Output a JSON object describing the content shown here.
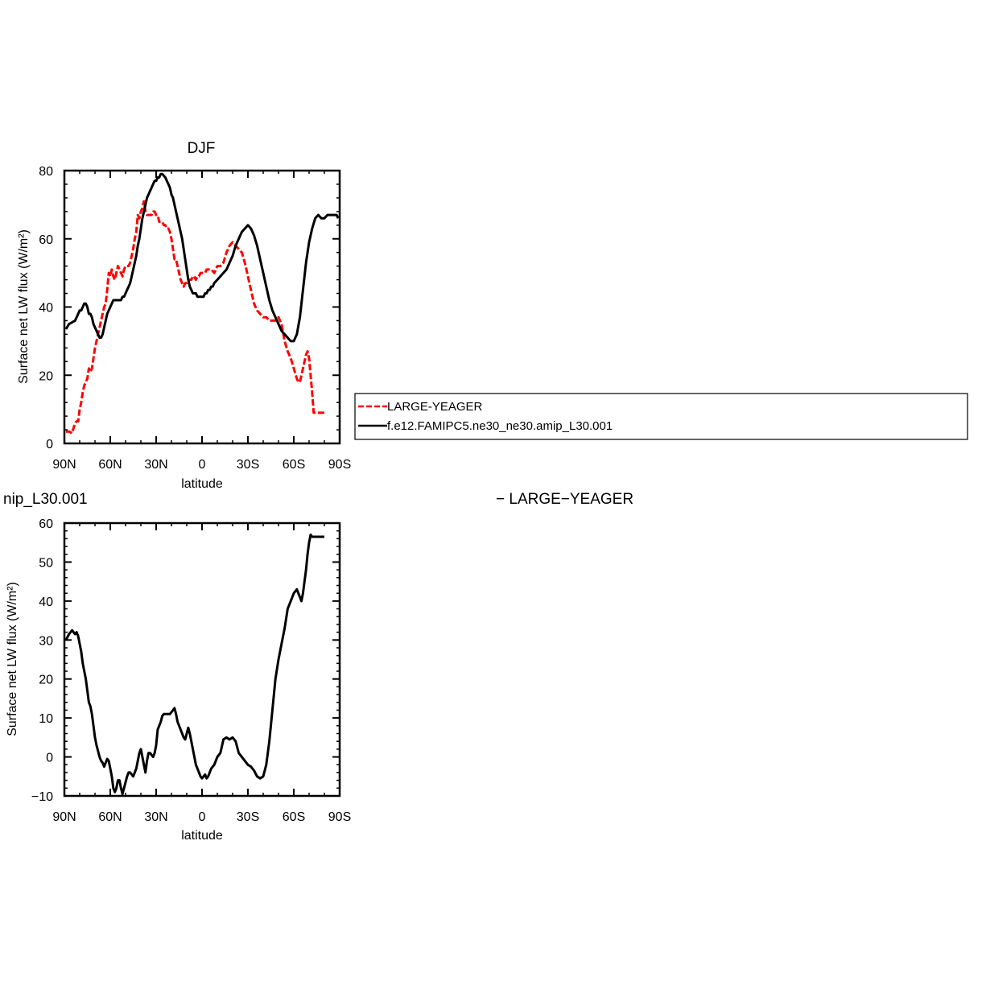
{
  "colors": {
    "obs": "#ff0000",
    "model": "#000000"
  },
  "legend": {
    "entries": [
      "LARGE-YEAGER",
      "f.e12.FAMIPC5.ne30_ne30.amip_L30.001"
    ]
  },
  "chart_data": [
    {
      "type": "line",
      "title": "DJF",
      "xlabel": "latitude",
      "ylabel": "Surface net LW flux (W/m²)",
      "xlim": [
        90,
        -90
      ],
      "ylim": [
        0,
        80
      ],
      "xticks": [
        90,
        60,
        30,
        0,
        -30,
        -60,
        -90
      ],
      "xtick_labels": [
        "90N",
        "60N",
        "30N",
        "0",
        "30S",
        "60S",
        "90S"
      ],
      "yticks": [
        0,
        20,
        40,
        60,
        80
      ],
      "ytick_labels": [
        "0",
        "20",
        "40",
        "60",
        "80"
      ],
      "legend_position": "right",
      "series": [
        {
          "name": "LARGE-YEAGER",
          "style": "dashed",
          "color": "#ff0000",
          "x": [
            89,
            87,
            85,
            84,
            83,
            82,
            81,
            80,
            79,
            78,
            77,
            76,
            75,
            74,
            73,
            72,
            71,
            70,
            69,
            68,
            67,
            66,
            65,
            64,
            63,
            62,
            61,
            60,
            59,
            58,
            57,
            56,
            55,
            54,
            53,
            52,
            51,
            50,
            49,
            48,
            47,
            46,
            45,
            44,
            43,
            42,
            41,
            40,
            39,
            38,
            37,
            36,
            35,
            34,
            33,
            32,
            31,
            30,
            29,
            28,
            27,
            26,
            25,
            24,
            23,
            22,
            21,
            20,
            19,
            18,
            17,
            16,
            15,
            14,
            13,
            12,
            11,
            10,
            9,
            8,
            7,
            6,
            5,
            4,
            3,
            2,
            1,
            0,
            -1,
            -2,
            -3,
            -4,
            -5,
            -6,
            -8,
            -10,
            -12,
            -14,
            -16,
            -18,
            -20,
            -22,
            -24,
            -26,
            -28,
            -30,
            -32,
            -34,
            -36,
            -38,
            -40,
            -42,
            -44,
            -46,
            -48,
            -50,
            -52,
            -54,
            -56,
            -58,
            -60,
            -62,
            -63,
            -64,
            -65,
            -66,
            -67,
            -68,
            -69,
            -70,
            -71,
            -72,
            -73,
            -74,
            -75,
            -76,
            -77,
            -78,
            -79,
            -80
          ],
          "y": [
            3.5,
            3.5,
            3,
            4.5,
            6,
            6.5,
            6.5,
            10,
            12,
            15,
            17,
            18,
            19,
            22,
            21,
            22,
            25,
            28,
            30,
            32,
            34,
            36,
            38,
            40,
            41,
            45,
            50,
            49,
            51,
            49,
            48,
            50,
            52,
            51,
            50,
            49,
            51,
            52,
            52,
            52,
            53,
            55,
            57,
            60,
            62,
            67,
            66,
            68,
            69,
            71,
            68,
            67,
            67,
            67,
            67,
            68,
            68,
            67,
            67,
            65,
            65,
            65,
            64,
            64,
            63,
            63,
            62,
            60,
            57,
            54,
            54,
            52,
            50,
            48,
            47,
            46,
            47,
            47,
            48,
            48,
            48,
            49,
            49,
            48,
            49,
            49,
            50,
            50,
            50,
            50,
            51,
            51,
            51,
            51,
            50,
            52,
            52,
            53,
            56,
            58,
            59,
            58,
            57,
            56,
            53,
            49,
            45,
            41,
            39,
            38,
            37,
            37,
            36,
            36,
            36,
            37,
            35,
            30,
            27,
            25,
            22,
            19,
            18,
            18,
            20,
            22,
            24,
            26,
            27,
            25,
            20,
            15,
            9,
            9,
            9,
            9,
            9,
            9,
            9,
            9
          ]
        },
        {
          "name": "f.e12.FAMIPC5.ne30_ne30.amip_L30.001",
          "style": "solid",
          "color": "#000000",
          "x": [
            89,
            87,
            85,
            83,
            82,
            81,
            80,
            79,
            78,
            77,
            76,
            75,
            74,
            73,
            72,
            71,
            70,
            69,
            68,
            67,
            66,
            65,
            64,
            63,
            62,
            61,
            60,
            59,
            58,
            57,
            56,
            55,
            54,
            53,
            52,
            51,
            50,
            49,
            48,
            47,
            46,
            45,
            44,
            43,
            42,
            41,
            40,
            39,
            38,
            37,
            36,
            35,
            34,
            33,
            32,
            31,
            30,
            29,
            28,
            27,
            26,
            25,
            24,
            23,
            22,
            21,
            20,
            19,
            18,
            17,
            16,
            15,
            14,
            13,
            12,
            11,
            10,
            9,
            8,
            7,
            6,
            5,
            4,
            3,
            2,
            1,
            0,
            -1,
            -2,
            -3,
            -4,
            -5,
            -6,
            -7,
            -8,
            -10,
            -12,
            -14,
            -16,
            -18,
            -20,
            -22,
            -24,
            -26,
            -28,
            -30,
            -32,
            -34,
            -36,
            -38,
            -40,
            -42,
            -44,
            -46,
            -48,
            -50,
            -52,
            -54,
            -56,
            -58,
            -60,
            -62,
            -64,
            -66,
            -68,
            -70,
            -72,
            -74,
            -76,
            -78,
            -80,
            -82,
            -84,
            -86,
            -88,
            -89
          ],
          "y": [
            33.5,
            35,
            35.5,
            36,
            37,
            38,
            39,
            39,
            40,
            41,
            41,
            40,
            38,
            38,
            37,
            35,
            34,
            33,
            32,
            31,
            31,
            32,
            34,
            36,
            38,
            39,
            40,
            41,
            42,
            42,
            42,
            42,
            42,
            42,
            43,
            43,
            44,
            45,
            46,
            47,
            49,
            51,
            53,
            55,
            58,
            60,
            63,
            66,
            68,
            70,
            72,
            73,
            74,
            75,
            76,
            77,
            77,
            78,
            78,
            79,
            79,
            78.5,
            78,
            77,
            76,
            75,
            73,
            72,
            70,
            68,
            66,
            64,
            62,
            60,
            57,
            54,
            51,
            48,
            46,
            45,
            44,
            44,
            44,
            43,
            43,
            43,
            43,
            43,
            44,
            44,
            45,
            45,
            46,
            46,
            47,
            48,
            49,
            50,
            51,
            53,
            55,
            58,
            60,
            62,
            63,
            64,
            63,
            61,
            58,
            54,
            50,
            46,
            42,
            39,
            37,
            35,
            33,
            32,
            31,
            30,
            30,
            32,
            37,
            45,
            53,
            59,
            63,
            66,
            67,
            66,
            66,
            67,
            67,
            67,
            67,
            66
          ]
        }
      ]
    },
    {
      "type": "line",
      "title": "nip_L30.001",
      "subtitle": "− LARGE−YEAGER",
      "xlabel": "latitude",
      "ylabel": "Surface net LW flux (W/m²)",
      "xlim": [
        90,
        -90
      ],
      "ylim": [
        -10,
        60
      ],
      "xticks": [
        90,
        60,
        30,
        0,
        -30,
        -60,
        -90
      ],
      "xtick_labels": [
        "90N",
        "60N",
        "30N",
        "0",
        "30S",
        "60S",
        "90S"
      ],
      "yticks": [
        -10,
        0,
        10,
        20,
        30,
        40,
        50,
        60
      ],
      "ytick_labels": [
        "−10",
        "0",
        "10",
        "20",
        "30",
        "40",
        "50",
        "60"
      ],
      "series": [
        {
          "style": "solid",
          "color": "#000000",
          "x": [
            89,
            87,
            85,
            84,
            83,
            82,
            81,
            80,
            79,
            78,
            77,
            76,
            75,
            74,
            73,
            72,
            71,
            70,
            69,
            68,
            67,
            66,
            65,
            64,
            63,
            62,
            61,
            60,
            59,
            58,
            57,
            56,
            55,
            54,
            53,
            52,
            51,
            50,
            49,
            48,
            47,
            46,
            45,
            44,
            43,
            42,
            41,
            40,
            39,
            38,
            37,
            36,
            35,
            34,
            33,
            32,
            31,
            30,
            29,
            28,
            27,
            26,
            25,
            24,
            23,
            22,
            21,
            20,
            19,
            18,
            17,
            16,
            15,
            14,
            13,
            12,
            11,
            10,
            9,
            8,
            7,
            6,
            5,
            4,
            3,
            2,
            1,
            0,
            -1,
            -2,
            -3,
            -4,
            -5,
            -6,
            -8,
            -10,
            -12,
            -14,
            -16,
            -18,
            -20,
            -22,
            -24,
            -26,
            -28,
            -30,
            -32,
            -34,
            -36,
            -38,
            -40,
            -42,
            -44,
            -46,
            -48,
            -50,
            -52,
            -54,
            -56,
            -58,
            -60,
            -62,
            -63,
            -64,
            -65,
            -66,
            -67,
            -68,
            -69,
            -70,
            -71,
            -72,
            -73,
            -74,
            -75,
            -76,
            -77,
            -78,
            -79,
            -80
          ],
          "y": [
            30,
            31.5,
            32.5,
            32,
            31.5,
            32,
            31,
            29,
            27,
            24,
            22,
            20,
            17,
            14,
            13,
            11,
            8,
            5,
            3,
            1.5,
            0,
            -1,
            -1.5,
            -2.5,
            -1.5,
            -0.5,
            -1,
            -3,
            -5,
            -8,
            -9,
            -8,
            -6,
            -6,
            -8,
            -9.5,
            -8,
            -6.5,
            -5,
            -4,
            -4,
            -4.5,
            -5,
            -4,
            -3,
            -1,
            1,
            2,
            0,
            -2,
            -4,
            -1,
            1,
            1,
            0.5,
            0,
            1,
            3,
            7,
            8,
            9,
            10.5,
            11,
            11,
            11,
            11,
            11,
            11.5,
            12,
            12.5,
            11,
            9,
            8,
            7,
            6,
            5,
            4.5,
            6,
            7.5,
            6,
            4,
            2,
            0,
            -2,
            -3,
            -4,
            -5,
            -5.5,
            -5,
            -4.5,
            -5.5,
            -5,
            -4,
            -3,
            -2,
            0,
            1,
            4.5,
            5,
            4.5,
            5,
            4,
            1,
            0,
            -1,
            -2,
            -2.5,
            -3.5,
            -5,
            -5.5,
            -5,
            -2,
            4,
            12,
            20,
            25,
            29,
            33,
            38,
            40,
            42,
            43,
            42,
            41,
            40,
            42,
            45,
            48,
            52,
            55,
            57,
            56.5,
            56.5,
            56.5,
            56.5,
            56.5,
            56.5,
            56.5,
            56.5,
            56.5
          ]
        }
      ]
    }
  ]
}
